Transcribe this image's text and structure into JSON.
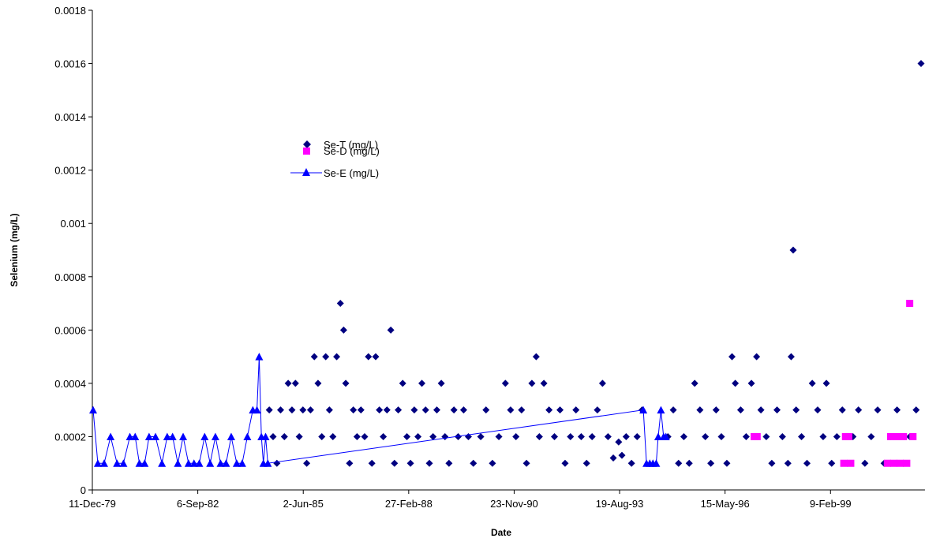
{
  "chart_data": {
    "type": "scatter",
    "title": "",
    "xlabel": "Date",
    "ylabel": "Selenium (mg/L)",
    "x_axis_type": "date",
    "xlim": [
      "1979-12-11",
      "2001-07-24"
    ],
    "ylim": [
      0,
      0.0018
    ],
    "y_ticks": [
      "0",
      "0.0002",
      "0.0004",
      "0.0006",
      "0.0008",
      "0.001",
      "0.0012",
      "0.0014",
      "0.0016",
      "0.0018"
    ],
    "x_ticks": [
      "11-Dec-79",
      "6-Sep-82",
      "2-Jun-85",
      "27-Feb-88",
      "23-Nov-90",
      "19-Aug-93",
      "15-May-96",
      "9-Feb-99"
    ],
    "x_tick_dates": [
      "1979-12-11",
      "1982-09-06",
      "1985-06-02",
      "1988-02-27",
      "1990-11-23",
      "1993-08-19",
      "1996-05-15",
      "1999-02-09"
    ],
    "grid": false,
    "legend_position": "upper-left-center",
    "series": [
      {
        "name": "Se-T (mg/L)",
        "marker": "diamond",
        "line": false,
        "color": "#000080",
        "points": [
          [
            "1984-07-15",
            0.0003
          ],
          [
            "1984-08-20",
            0.0002
          ],
          [
            "1984-09-25",
            0.0001
          ],
          [
            "1984-10-30",
            0.0003
          ],
          [
            "1984-12-05",
            0.0002
          ],
          [
            "1985-01-10",
            0.0004
          ],
          [
            "1985-02-15",
            0.0003
          ],
          [
            "1985-03-20",
            0.0004
          ],
          [
            "1985-04-25",
            0.0002
          ],
          [
            "1985-05-30",
            0.0003
          ],
          [
            "1985-07-05",
            0.0001
          ],
          [
            "1985-08-10",
            0.0003
          ],
          [
            "1985-09-15",
            0.0005
          ],
          [
            "1985-10-20",
            0.0004
          ],
          [
            "1985-11-25",
            0.0002
          ],
          [
            "1986-01-01",
            0.0005
          ],
          [
            "1986-02-05",
            0.0003
          ],
          [
            "1986-03-10",
            0.0002
          ],
          [
            "1986-04-15",
            0.0005
          ],
          [
            "1986-05-20",
            0.0007
          ],
          [
            "1986-06-20",
            0.0006
          ],
          [
            "1986-07-10",
            0.0004
          ],
          [
            "1986-08-15",
            0.0001
          ],
          [
            "1986-09-20",
            0.0003
          ],
          [
            "1986-10-25",
            0.0002
          ],
          [
            "1986-12-01",
            0.0003
          ],
          [
            "1987-01-05",
            0.0002
          ],
          [
            "1987-02-10",
            0.0005
          ],
          [
            "1987-03-15",
            0.0001
          ],
          [
            "1987-04-20",
            0.0005
          ],
          [
            "1987-05-25",
            0.0003
          ],
          [
            "1987-07-01",
            0.0002
          ],
          [
            "1987-08-05",
            0.0003
          ],
          [
            "1987-09-10",
            0.0006
          ],
          [
            "1987-10-15",
            0.0001
          ],
          [
            "1987-11-20",
            0.0003
          ],
          [
            "1988-01-01",
            0.0004
          ],
          [
            "1988-02-10",
            0.0002
          ],
          [
            "1988-03-15",
            0.0001
          ],
          [
            "1988-04-20",
            0.0003
          ],
          [
            "1988-05-25",
            0.0002
          ],
          [
            "1988-07-01",
            0.0004
          ],
          [
            "1988-08-05",
            0.0003
          ],
          [
            "1988-09-10",
            0.0001
          ],
          [
            "1988-10-15",
            0.0002
          ],
          [
            "1988-11-20",
            0.0003
          ],
          [
            "1989-01-01",
            0.0004
          ],
          [
            "1989-02-05",
            0.0002
          ],
          [
            "1989-03-15",
            0.0001
          ],
          [
            "1989-05-01",
            0.0003
          ],
          [
            "1989-06-10",
            0.0002
          ],
          [
            "1989-08-01",
            0.0003
          ],
          [
            "1989-09-15",
            0.0002
          ],
          [
            "1989-11-01",
            0.0001
          ],
          [
            "1990-01-10",
            0.0002
          ],
          [
            "1990-03-01",
            0.0003
          ],
          [
            "1990-05-01",
            0.0001
          ],
          [
            "1990-07-01",
            0.0002
          ],
          [
            "1990-09-01",
            0.0004
          ],
          [
            "1990-10-20",
            0.0003
          ],
          [
            "1990-12-10",
            0.0002
          ],
          [
            "1991-02-01",
            0.0003
          ],
          [
            "1991-03-20",
            0.0001
          ],
          [
            "1991-05-10",
            0.0004
          ],
          [
            "1991-06-20",
            0.0005
          ],
          [
            "1991-07-20",
            0.0002
          ],
          [
            "1991-09-01",
            0.0004
          ],
          [
            "1991-10-20",
            0.0003
          ],
          [
            "1991-12-10",
            0.0002
          ],
          [
            "1992-02-01",
            0.0003
          ],
          [
            "1992-03-20",
            0.0001
          ],
          [
            "1992-05-10",
            0.0002
          ],
          [
            "1992-07-01",
            0.0003
          ],
          [
            "1992-08-20",
            0.0002
          ],
          [
            "1992-10-10",
            0.0001
          ],
          [
            "1992-12-01",
            0.0002
          ],
          [
            "1993-01-20",
            0.0003
          ],
          [
            "1993-03-10",
            0.0004
          ],
          [
            "1993-05-01",
            0.0002
          ],
          [
            "1993-06-20",
            0.00012
          ],
          [
            "1993-08-10",
            0.00018
          ],
          [
            "1993-09-10",
            0.00013
          ],
          [
            "1993-10-20",
            0.0002
          ],
          [
            "1993-12-10",
            0.0001
          ],
          [
            "1994-02-01",
            0.0002
          ],
          [
            "1994-03-20",
            0.0003
          ],
          [
            "1994-11-20",
            0.0002
          ],
          [
            "1995-01-10",
            0.0003
          ],
          [
            "1995-03-01",
            0.0001
          ],
          [
            "1995-04-20",
            0.0002
          ],
          [
            "1995-06-10",
            0.0001
          ],
          [
            "1995-08-01",
            0.0004
          ],
          [
            "1995-09-20",
            0.0003
          ],
          [
            "1995-11-10",
            0.0002
          ],
          [
            "1996-01-01",
            0.0001
          ],
          [
            "1996-02-20",
            0.0003
          ],
          [
            "1996-04-10",
            0.0002
          ],
          [
            "1996-06-01",
            0.0001
          ],
          [
            "1996-07-20",
            0.0005
          ],
          [
            "1996-08-20",
            0.0004
          ],
          [
            "1996-10-10",
            0.0003
          ],
          [
            "1996-12-01",
            0.0002
          ],
          [
            "1997-01-20",
            0.0004
          ],
          [
            "1997-03-10",
            0.0005
          ],
          [
            "1997-04-20",
            0.0003
          ],
          [
            "1997-06-10",
            0.0002
          ],
          [
            "1997-08-01",
            0.0001
          ],
          [
            "1997-09-20",
            0.0003
          ],
          [
            "1997-11-10",
            0.0002
          ],
          [
            "1998-01-01",
            0.0001
          ],
          [
            "1998-02-01",
            0.0005
          ],
          [
            "1998-02-20",
            0.0009
          ],
          [
            "1998-03-20",
            0.0003
          ],
          [
            "1998-05-10",
            0.0002
          ],
          [
            "1998-07-01",
            0.0001
          ],
          [
            "1998-08-20",
            0.0004
          ],
          [
            "1998-10-10",
            0.0003
          ],
          [
            "1998-12-01",
            0.0002
          ],
          [
            "1999-01-01",
            0.0004
          ],
          [
            "1999-02-20",
            0.0001
          ],
          [
            "1999-04-10",
            0.0002
          ],
          [
            "1999-06-01",
            0.0003
          ],
          [
            "1999-07-20",
            0.0001
          ],
          [
            "1999-09-10",
            0.0002
          ],
          [
            "1999-11-01",
            0.0003
          ],
          [
            "2000-01-01",
            0.0001
          ],
          [
            "2000-03-01",
            0.0002
          ],
          [
            "2000-05-01",
            0.0003
          ],
          [
            "2000-07-01",
            0.0001
          ],
          [
            "2000-09-01",
            0.0002
          ],
          [
            "2000-11-01",
            0.0003
          ],
          [
            "2001-01-01",
            0.0001
          ],
          [
            "2001-03-01",
            0.0002
          ],
          [
            "2001-05-01",
            0.0003
          ],
          [
            "2001-07-20",
            0.0016
          ]
        ]
      },
      {
        "name": "Se-D (mg/L)",
        "marker": "square",
        "line": false,
        "color": "#FF00FF",
        "points": [
          [
            "1997-02-15",
            0.0002
          ],
          [
            "1997-03-15",
            0.0002
          ],
          [
            "1999-06-15",
            0.0001
          ],
          [
            "1999-07-01",
            0.0002
          ],
          [
            "1999-08-01",
            0.0002
          ],
          [
            "1999-08-20",
            0.0001
          ],
          [
            "2000-08-01",
            0.0001
          ],
          [
            "2000-09-01",
            0.0002
          ],
          [
            "2000-10-01",
            0.0001
          ],
          [
            "2000-11-01",
            0.0002
          ],
          [
            "2000-12-01",
            0.0001
          ],
          [
            "2001-01-01",
            0.0002
          ],
          [
            "2001-02-01",
            0.0001
          ],
          [
            "2001-03-01",
            0.0007
          ],
          [
            "2001-04-01",
            0.0002
          ]
        ]
      },
      {
        "name": "Se-E (mg/L)",
        "marker": "triangle",
        "line": true,
        "color": "#0000FF",
        "points": [
          [
            "1979-12-11",
            0.0003
          ],
          [
            "1980-02-01",
            0.0001
          ],
          [
            "1980-04-01",
            0.0001
          ],
          [
            "1980-06-01",
            0.0002
          ],
          [
            "1980-08-01",
            0.0001
          ],
          [
            "1980-10-01",
            0.0001
          ],
          [
            "1980-12-01",
            0.0002
          ],
          [
            "1981-01-20",
            0.0002
          ],
          [
            "1981-03-01",
            0.0001
          ],
          [
            "1981-04-20",
            0.0001
          ],
          [
            "1981-06-01",
            0.0002
          ],
          [
            "1981-08-01",
            0.0002
          ],
          [
            "1981-10-01",
            0.0001
          ],
          [
            "1981-11-20",
            0.0002
          ],
          [
            "1982-01-10",
            0.0002
          ],
          [
            "1982-03-01",
            0.0001
          ],
          [
            "1982-04-20",
            0.0002
          ],
          [
            "1982-06-10",
            0.0001
          ],
          [
            "1982-08-01",
            0.0001
          ],
          [
            "1982-09-20",
            0.0001
          ],
          [
            "1982-11-10",
            0.0002
          ],
          [
            "1983-01-01",
            0.0001
          ],
          [
            "1983-02-20",
            0.0002
          ],
          [
            "1983-04-10",
            0.0001
          ],
          [
            "1983-06-01",
            0.0001
          ],
          [
            "1983-07-20",
            0.0002
          ],
          [
            "1983-09-10",
            0.0001
          ],
          [
            "1983-11-01",
            0.0001
          ],
          [
            "1983-12-20",
            0.0002
          ],
          [
            "1984-02-10",
            0.0003
          ],
          [
            "1984-03-20",
            0.0003
          ],
          [
            "1984-04-10",
            0.0005
          ],
          [
            "1984-05-01",
            0.0002
          ],
          [
            "1984-05-20",
            0.0001
          ],
          [
            "1984-06-10",
            0.0002
          ],
          [
            "1984-07-01",
            0.0001
          ],
          [
            "1994-04-01",
            0.0003
          ],
          [
            "1994-05-01",
            0.0001
          ],
          [
            "1994-06-01",
            0.0001
          ],
          [
            "1994-07-01",
            0.0001
          ],
          [
            "1994-08-01",
            0.0001
          ],
          [
            "1994-08-20",
            0.0002
          ],
          [
            "1994-09-15",
            0.0003
          ],
          [
            "1994-10-10",
            0.0002
          ],
          [
            "1994-11-01",
            0.0002
          ]
        ]
      }
    ]
  }
}
